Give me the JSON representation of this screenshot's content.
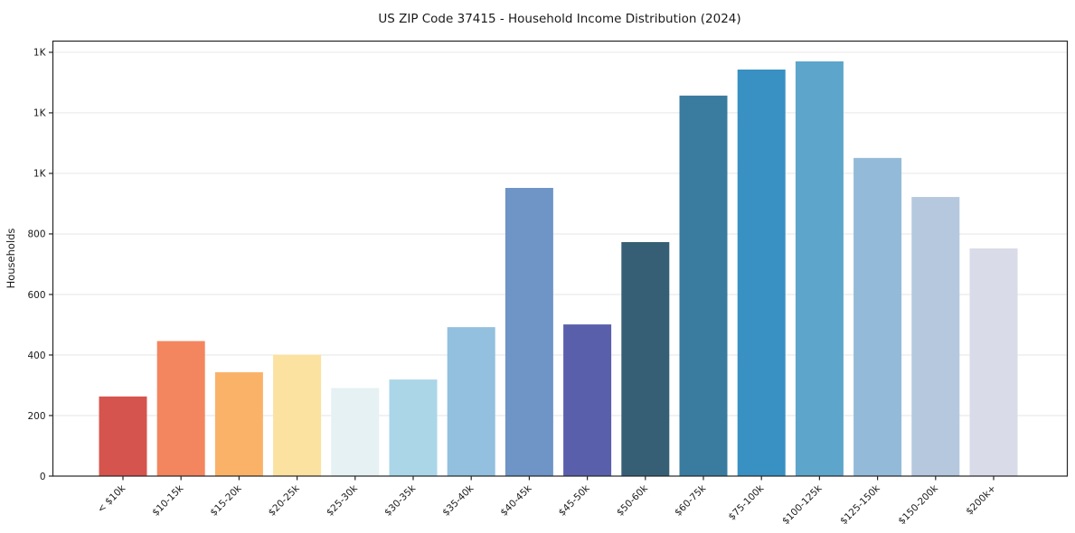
{
  "chart_data": {
    "type": "bar",
    "title": "US ZIP Code 37415 - Household Income Distribution (2024)",
    "xlabel": "",
    "ylabel": "Households",
    "categories": [
      "< $10k",
      "$10-15k",
      "$15-20k",
      "$20-25k",
      "$25-30k",
      "$30-35k",
      "$35-40k",
      "$40-45k",
      "$45-50k",
      "$50-60k",
      "$60-75k",
      "$75-100k",
      "$100-125k",
      "$125-150k",
      "$150-200k",
      "$200k+"
    ],
    "values": [
      263,
      446,
      343,
      401,
      291,
      319,
      492,
      952,
      501,
      773,
      1257,
      1343,
      1370,
      1051,
      922,
      752
    ],
    "bar_colors": [
      "#d6544e",
      "#f3855f",
      "#fab269",
      "#fce2a0",
      "#e5f1f3",
      "#aad6e8",
      "#92c0de",
      "#6f94c6",
      "#5a5fab",
      "#365f75",
      "#3a7ba0",
      "#3990c3",
      "#5da5cb",
      "#94bad9",
      "#b5c8de",
      "#d9dbe8"
    ],
    "ylim": [
      0,
      1437
    ],
    "yticks": [
      {
        "value": 0,
        "label": "0"
      },
      {
        "value": 200,
        "label": "200"
      },
      {
        "value": 400,
        "label": "400"
      },
      {
        "value": 600,
        "label": "600"
      },
      {
        "value": 800,
        "label": "800"
      },
      {
        "value": 1000,
        "label": "1K"
      },
      {
        "value": 1200,
        "label": "1K"
      },
      {
        "value": 1400,
        "label": "1K"
      }
    ],
    "grid": "horizontal",
    "grid_color": "#e6e6e6",
    "spine_color": "#262626",
    "legend": "none",
    "x_tick_rotation_deg": 45
  }
}
